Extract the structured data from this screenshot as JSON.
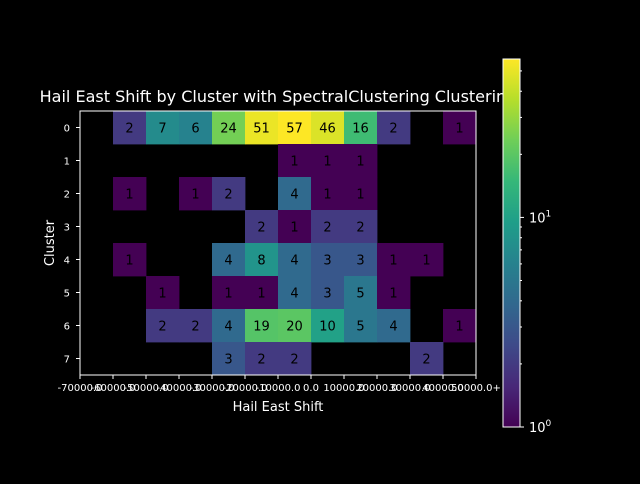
{
  "chart_data": {
    "type": "heatmap",
    "title": "Hail East Shift by Cluster with SpectralClustering Clustering",
    "xlabel": "Hail East Shift",
    "ylabel": "Cluster",
    "x_tick_labels": [
      "-70000.0",
      "-60000.0",
      "-50000.0",
      "-40000.0",
      "-30000.0",
      "-20000.0",
      "-10000.0",
      "0.0",
      "10000.0",
      "20000.0",
      "30000.0",
      "40000.0",
      "50000.0+"
    ],
    "y_tick_labels": [
      "0",
      "1",
      "2",
      "3",
      "4",
      "5",
      "6",
      "7"
    ],
    "values": [
      [
        null,
        2,
        7,
        6,
        24,
        51,
        57,
        46,
        16,
        2,
        null,
        1
      ],
      [
        null,
        null,
        null,
        null,
        null,
        null,
        1,
        1,
        1,
        null,
        null,
        null
      ],
      [
        null,
        1,
        null,
        1,
        2,
        null,
        4,
        1,
        1,
        null,
        null,
        null
      ],
      [
        null,
        null,
        null,
        null,
        null,
        2,
        1,
        2,
        2,
        null,
        null,
        null
      ],
      [
        null,
        1,
        null,
        null,
        4,
        8,
        4,
        3,
        3,
        1,
        1,
        null
      ],
      [
        null,
        null,
        1,
        null,
        1,
        1,
        4,
        3,
        5,
        1,
        null,
        null
      ],
      [
        null,
        null,
        2,
        2,
        4,
        19,
        20,
        10,
        5,
        4,
        null,
        1
      ],
      [
        null,
        null,
        null,
        null,
        3,
        2,
        2,
        null,
        null,
        null,
        2,
        null
      ]
    ],
    "colorbar": {
      "scale": "log",
      "colormap": "viridis",
      "range": [
        1,
        57
      ],
      "tick_labels": [
        "10^0",
        "10^1"
      ]
    },
    "background_color": "#000000"
  }
}
